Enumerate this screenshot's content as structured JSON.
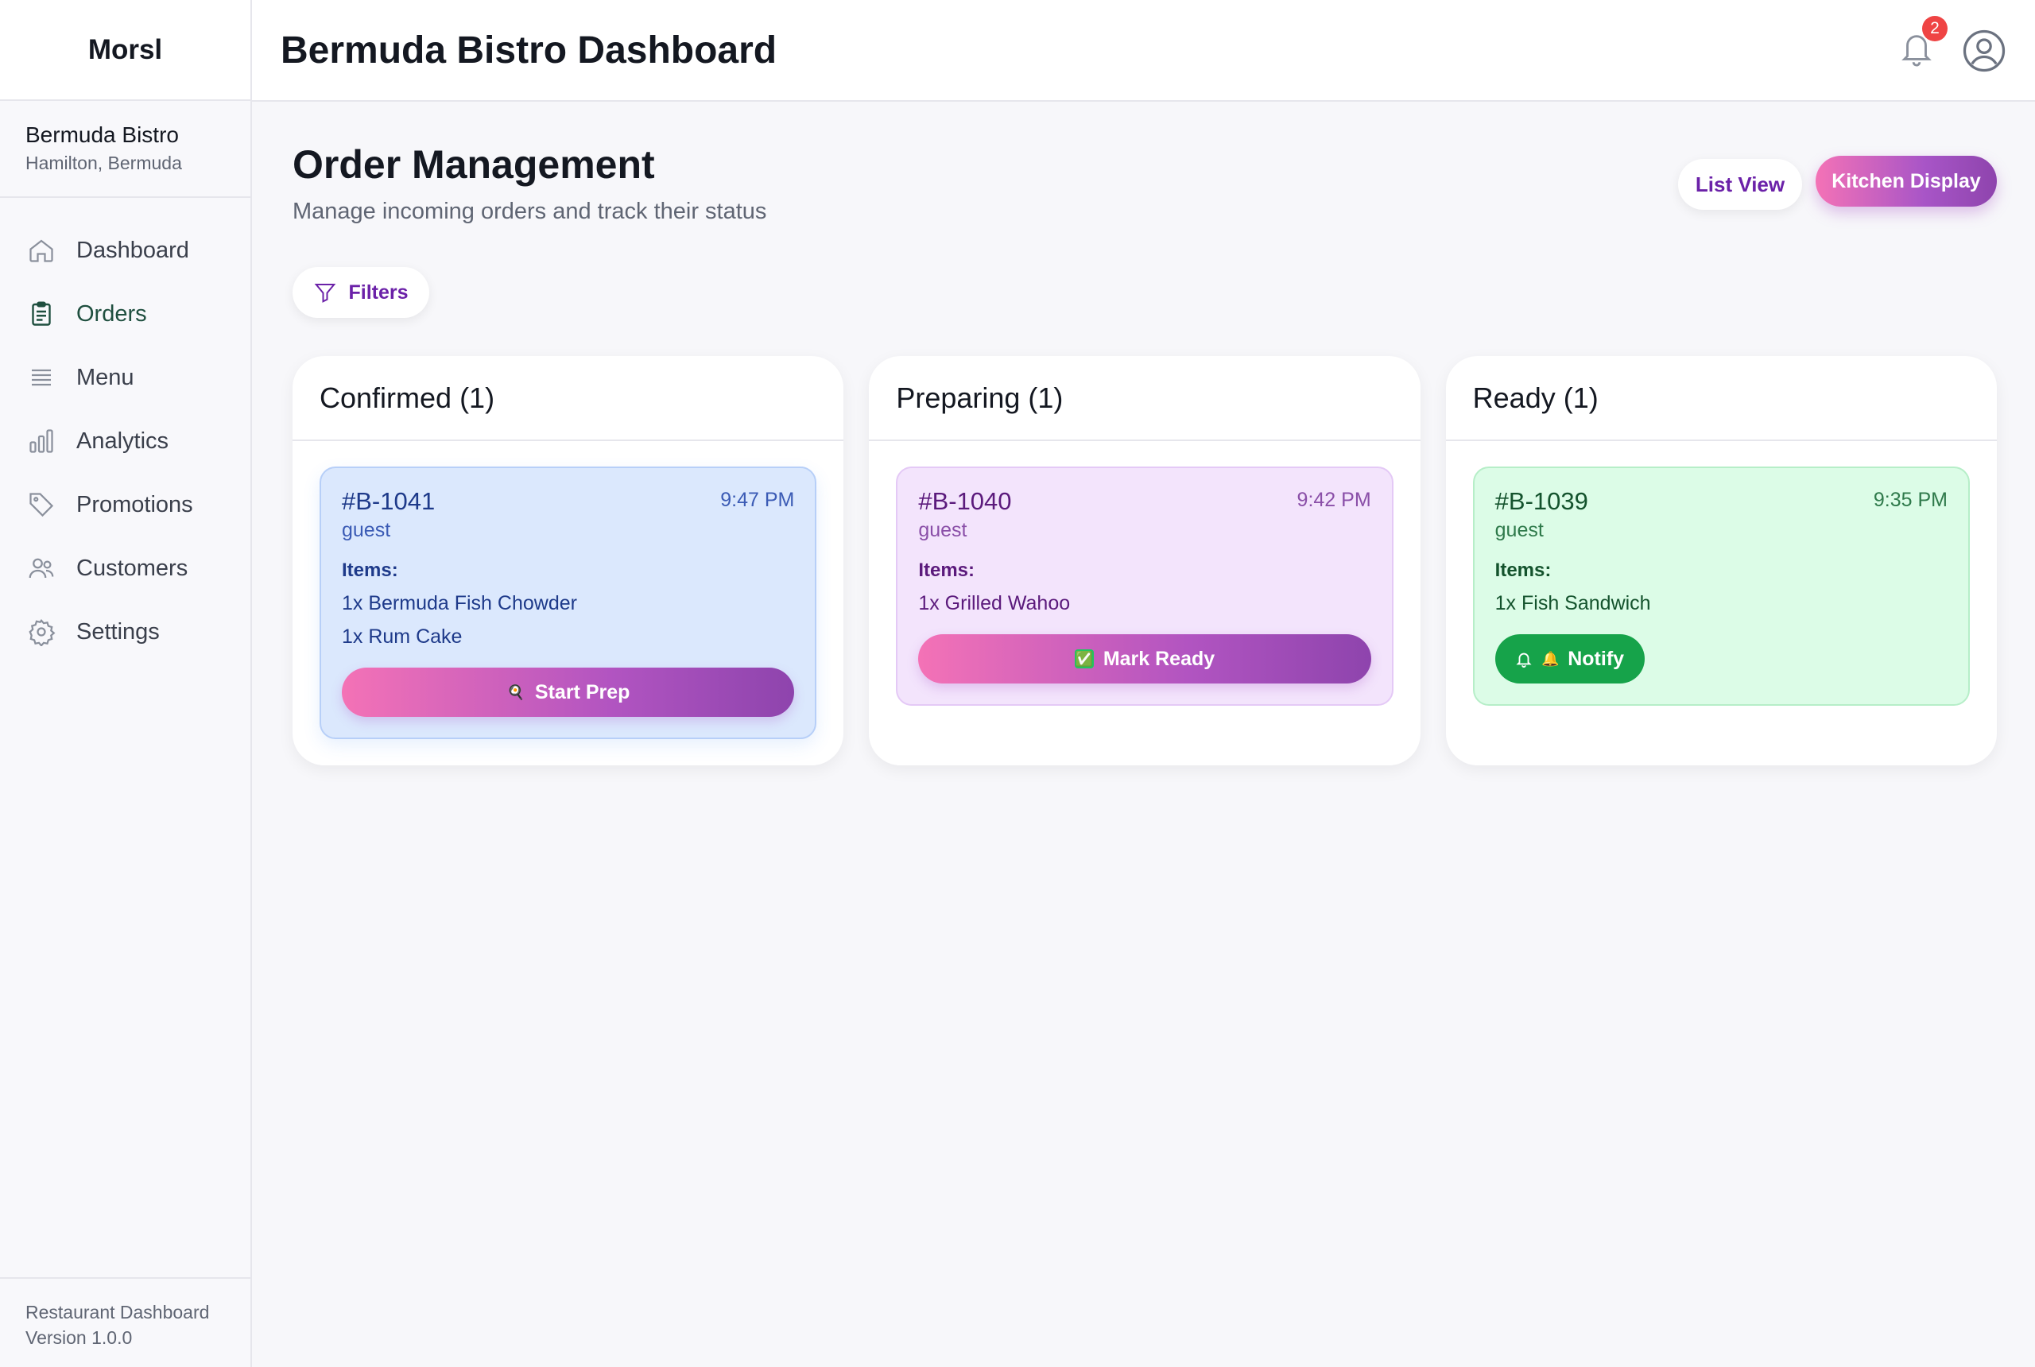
{
  "sidebar": {
    "brand": "Morsl",
    "restaurant_name": "Bermuda Bistro",
    "restaurant_location": "Hamilton, Bermuda",
    "items": [
      {
        "label": "Dashboard",
        "icon": "home-icon"
      },
      {
        "label": "Orders",
        "icon": "clipboard-icon"
      },
      {
        "label": "Menu",
        "icon": "menu-lines-icon"
      },
      {
        "label": "Analytics",
        "icon": "bar-chart-icon"
      },
      {
        "label": "Promotions",
        "icon": "tag-icon"
      },
      {
        "label": "Customers",
        "icon": "users-icon"
      },
      {
        "label": "Settings",
        "icon": "gear-icon"
      }
    ],
    "footer_line1": "Restaurant Dashboard",
    "footer_line2": "Version 1.0.0"
  },
  "header": {
    "title": "Bermuda Bistro Dashboard",
    "notification_count": "2"
  },
  "main": {
    "title": "Order Management",
    "subtitle": "Manage incoming orders and track their status",
    "list_view_label": "List View",
    "kitchen_display_label": "Kitchen Display",
    "filters_label": "Filters",
    "columns": [
      {
        "title": "Confirmed (1)",
        "order": {
          "id": "#B-1041",
          "time": "9:47 PM",
          "customer": "guest",
          "items_label": "Items:",
          "items": [
            "1x Bermuda Fish Chowder",
            "1x Rum Cake"
          ],
          "action": "Start Prep",
          "action_icon": "🍳"
        }
      },
      {
        "title": "Preparing (1)",
        "order": {
          "id": "#B-1040",
          "time": "9:42 PM",
          "customer": "guest",
          "items_label": "Items:",
          "items": [
            "1x Grilled Wahoo"
          ],
          "action": "Mark Ready",
          "action_icon": "✅"
        }
      },
      {
        "title": "Ready (1)",
        "order": {
          "id": "#B-1039",
          "time": "9:35 PM",
          "customer": "guest",
          "items_label": "Items:",
          "items": [
            "1x Fish Sandwich"
          ],
          "action": "Notify",
          "action_icon": "🔔"
        }
      }
    ]
  },
  "colors": {
    "accent_purple": "#6b21a8",
    "gradient_start": "#f472b6",
    "gradient_end": "#8e44ad",
    "ready_green": "#16a34a",
    "badge_red": "#ef4444"
  }
}
